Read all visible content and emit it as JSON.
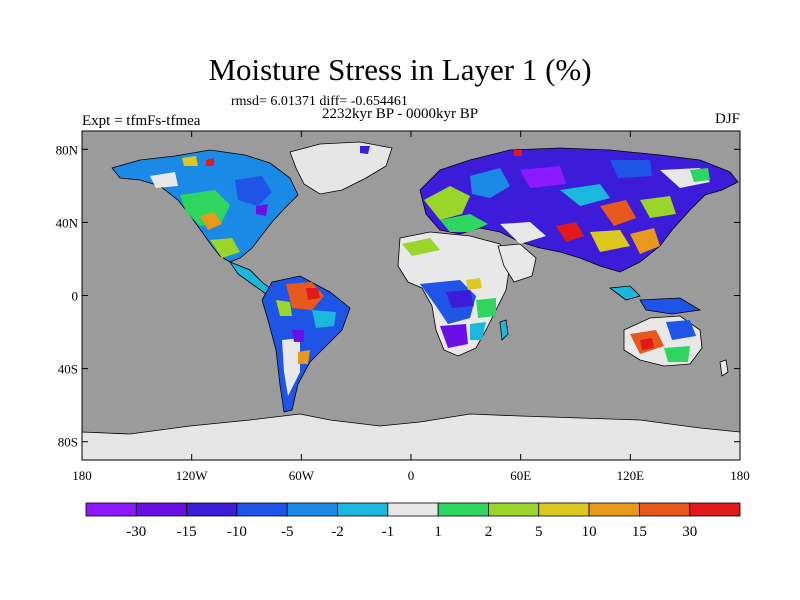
{
  "title": "Moisture Stress in Layer 1 (%)",
  "stats": "rmsd= 6.01371 diff= -0.654461",
  "period": "2232kyr BP - 0000kyr BP",
  "experiment": "Expt = tfmFs-tfmea",
  "season": "DJF",
  "map": {
    "lon_range": [
      -180,
      180
    ],
    "lat_range": [
      -90,
      90
    ],
    "ocean_color": "#9b9b9b",
    "ice_color": "#e6e6e6",
    "lon_ticks": [
      "180",
      "120W",
      "60W",
      "0",
      "60E",
      "120E",
      "180"
    ],
    "lat_ticks": [
      "80N",
      "40N",
      "0",
      "40S",
      "80S"
    ]
  },
  "colorbar": {
    "labels": [
      "-30",
      "-15",
      "-10",
      "-5",
      "-2",
      "-1",
      "1",
      "2",
      "5",
      "10",
      "15",
      "30"
    ],
    "colors": [
      "#8c1aff",
      "#6a10e6",
      "#3c1cd9",
      "#1f55e6",
      "#1a8ae6",
      "#19b8dc",
      "#e8e8e8",
      "#2ed660",
      "#9ad52a",
      "#dcc81e",
      "#e8981a",
      "#e8581a",
      "#e01a1a"
    ]
  }
}
